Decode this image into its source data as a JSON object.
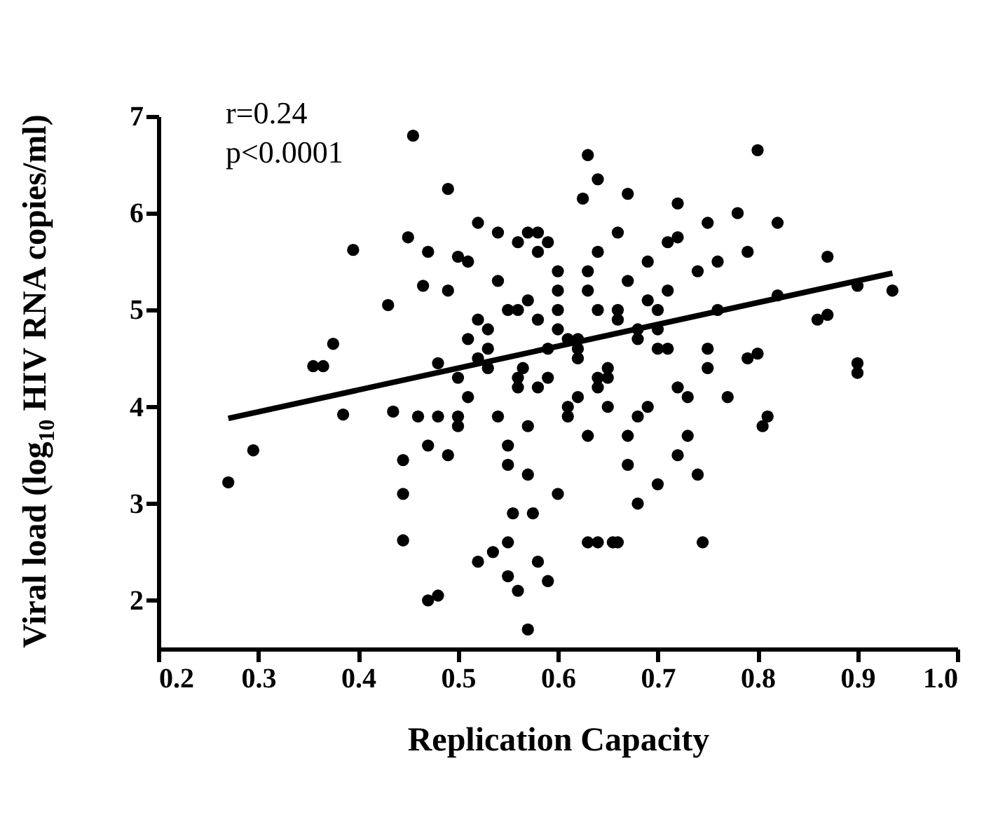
{
  "chart_data": {
    "type": "scatter",
    "xlabel": "Replication Capacity",
    "ylabel": "Viral load (log$_{10}$ HIV RNA copies/ml)",
    "annotations": [
      "r=0.24",
      "p<0.0001"
    ],
    "xlim": [
      0.2,
      1.0
    ],
    "xticks": [
      {
        "value": 0.2,
        "label": "0.2"
      },
      {
        "value": 0.3,
        "label": "0.3"
      },
      {
        "value": 0.4,
        "label": "0.4"
      },
      {
        "value": 0.5,
        "label": "0.5"
      },
      {
        "value": 0.6,
        "label": "0.6"
      },
      {
        "value": 0.7,
        "label": "0.7"
      },
      {
        "value": 0.8,
        "label": "0.8"
      },
      {
        "value": 0.9,
        "label": "0.9"
      },
      {
        "value": 1.0,
        "label": "1.0"
      }
    ],
    "ylim": [
      1.5,
      7
    ],
    "yticks": [
      2,
      3,
      4,
      5,
      6,
      7
    ],
    "grid": false,
    "series": [
      {
        "color": "#000000",
        "marker": "circle",
        "x": [
          0.27,
          0.295,
          0.355,
          0.365,
          0.375,
          0.385,
          0.395,
          0.43,
          0.435,
          0.445,
          0.445,
          0.45,
          0.455,
          0.445,
          0.465,
          0.47,
          0.48,
          0.49,
          0.48,
          0.51,
          0.52,
          0.52,
          0.535,
          0.55,
          0.55,
          0.56,
          0.57,
          0.58,
          0.59,
          0.63,
          0.64,
          0.625,
          0.67,
          0.72,
          0.8,
          0.78,
          0.82,
          0.87,
          0.86,
          0.87,
          0.9,
          0.9,
          0.935,
          0.9,
          0.81,
          0.805,
          0.745,
          0.64,
          0.66,
          0.655,
          0.63,
          0.7,
          0.72,
          0.73,
          0.75,
          0.79,
          0.8,
          0.82,
          0.79,
          0.76,
          0.75,
          0.72,
          0.46,
          0.47,
          0.48,
          0.49,
          0.5,
          0.5,
          0.51,
          0.52,
          0.53,
          0.54,
          0.55,
          0.56,
          0.57,
          0.58,
          0.59,
          0.6,
          0.61,
          0.62,
          0.63,
          0.64,
          0.65,
          0.66,
          0.67,
          0.68,
          0.69,
          0.7,
          0.71,
          0.5,
          0.52,
          0.54,
          0.56,
          0.58,
          0.6,
          0.62,
          0.64,
          0.66,
          0.68,
          0.7,
          0.72,
          0.74,
          0.76,
          0.53,
          0.55,
          0.57,
          0.59,
          0.61,
          0.63,
          0.65,
          0.67,
          0.69,
          0.71,
          0.73,
          0.75,
          0.77,
          0.49,
          0.51,
          0.53,
          0.55,
          0.57,
          0.59,
          0.61,
          0.63,
          0.65,
          0.67,
          0.69,
          0.71,
          0.47,
          0.5,
          0.54,
          0.56,
          0.58,
          0.6,
          0.62,
          0.64,
          0.66,
          0.68,
          0.7,
          0.56,
          0.58,
          0.6,
          0.62,
          0.64,
          0.57,
          0.565,
          0.575,
          0.555,
          0.6,
          0.68,
          0.74
        ],
        "values": [
          3.22,
          3.55,
          4.42,
          4.42,
          4.65,
          3.92,
          5.62,
          5.05,
          3.95,
          3.1,
          2.62,
          5.75,
          6.8,
          3.45,
          5.25,
          2.0,
          2.05,
          6.25,
          4.45,
          5.5,
          5.9,
          2.4,
          2.5,
          2.6,
          2.25,
          2.1,
          1.7,
          2.4,
          2.2,
          6.6,
          6.35,
          6.15,
          6.2,
          6.1,
          6.65,
          6.0,
          5.9,
          5.55,
          4.9,
          4.95,
          4.45,
          4.35,
          5.2,
          5.25,
          3.9,
          3.8,
          2.6,
          2.6,
          2.6,
          2.6,
          2.6,
          3.2,
          3.5,
          3.7,
          4.6,
          4.5,
          4.55,
          5.15,
          5.6,
          5.5,
          5.9,
          5.75,
          3.9,
          3.6,
          3.9,
          3.5,
          3.8,
          5.55,
          4.7,
          4.5,
          4.4,
          5.3,
          3.6,
          4.2,
          5.1,
          4.9,
          4.6,
          4.8,
          4.7,
          4.5,
          5.2,
          5.0,
          4.4,
          4.9,
          5.3,
          4.8,
          5.5,
          5.0,
          5.2,
          4.3,
          4.9,
          3.9,
          5.7,
          5.6,
          5.4,
          4.1,
          5.6,
          5.8,
          3.9,
          4.6,
          4.2,
          5.4,
          5.0,
          4.6,
          3.4,
          3.3,
          4.3,
          4.0,
          3.7,
          4.3,
          3.4,
          5.1,
          5.7,
          4.1,
          4.4,
          4.1,
          5.2,
          4.1,
          4.8,
          5.0,
          5.8,
          5.7,
          3.9,
          5.4,
          4.0,
          3.7,
          4.0,
          4.6,
          5.6,
          3.9,
          5.8,
          4.3,
          4.2,
          5.2,
          4.7,
          4.3,
          5.0,
          4.7,
          4.8,
          5.0,
          5.8,
          5.0,
          4.6,
          4.2,
          3.8,
          4.4,
          2.9,
          2.9,
          3.1,
          3.0,
          3.3
        ]
      },
      {
        "type": "line",
        "color": "#000000",
        "line_style": "solid",
        "x": [
          0.27,
          0.935
        ],
        "values": [
          3.88,
          5.38
        ]
      }
    ]
  }
}
